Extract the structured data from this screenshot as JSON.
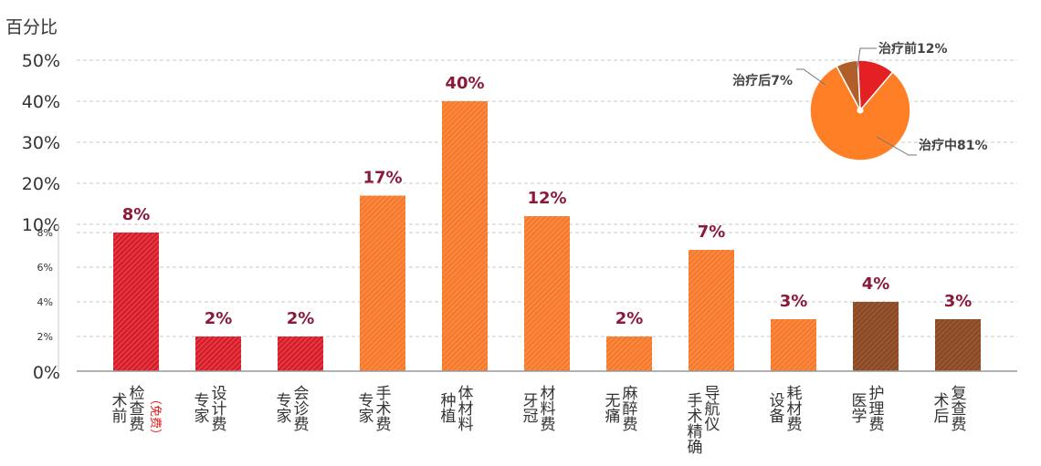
{
  "chart_data": [
    {
      "type": "bar",
      "ylabel": "百分比",
      "y_ticks_major": [
        "50%",
        "40%",
        "30%",
        "20%",
        "10%"
      ],
      "y_ticks_minor": [
        "8%",
        "6%",
        "4%",
        "2%",
        "0%"
      ],
      "grid": true,
      "grid_style": "dashed",
      "categories": [
        {
          "lines": [
            "检查费",
            "术前"
          ],
          "note": "（免费）",
          "value": 8,
          "label": "8%",
          "phase": "pre"
        },
        {
          "lines": [
            "设计费",
            "专家"
          ],
          "value": 2,
          "label": "2%",
          "phase": "pre"
        },
        {
          "lines": [
            "会诊费",
            "专家"
          ],
          "value": 2,
          "label": "2%",
          "phase": "pre"
        },
        {
          "lines": [
            "手术费",
            "专家"
          ],
          "value": 17,
          "label": "17%",
          "phase": "mid"
        },
        {
          "lines": [
            "体材料",
            "种植"
          ],
          "value": 40,
          "label": "40%",
          "phase": "mid"
        },
        {
          "lines": [
            "材料费",
            "牙冠"
          ],
          "value": 12,
          "label": "12%",
          "phase": "mid"
        },
        {
          "lines": [
            "麻醉费",
            "无痛"
          ],
          "value": 2,
          "label": "2%",
          "phase": "mid"
        },
        {
          "lines": [
            "导航仪",
            "手术精确"
          ],
          "value": 7,
          "label": "7%",
          "phase": "mid"
        },
        {
          "lines": [
            "耗材费",
            "设备"
          ],
          "value": 3,
          "label": "3%",
          "phase": "mid"
        },
        {
          "lines": [
            "护理费",
            "医学"
          ],
          "value": 4,
          "label": "4%",
          "phase": "post"
        },
        {
          "lines": [
            "复查费",
            "术后"
          ],
          "value": 3,
          "label": "3%",
          "phase": "post"
        }
      ]
    },
    {
      "type": "pie",
      "slices": [
        {
          "name": "治疗前",
          "value": 12,
          "label": "治疗前12%",
          "phase": "pre"
        },
        {
          "name": "治疗中",
          "value": 81,
          "label": "治疗中81%",
          "phase": "mid"
        },
        {
          "name": "治疗后",
          "value": 7,
          "label": "治疗后7%",
          "phase": "post"
        }
      ]
    }
  ],
  "colors": {
    "pre": "#d71f2b",
    "mid": "#f7792b",
    "post": "#8b4a26",
    "value_label": "#8b1a3a",
    "axis_text": "#333333",
    "note": "#e02020",
    "grid": "#c8c8c8",
    "pie_pre": "#e32024",
    "pie_mid": "#ff7f27",
    "pie_post": "#b15f2a"
  }
}
